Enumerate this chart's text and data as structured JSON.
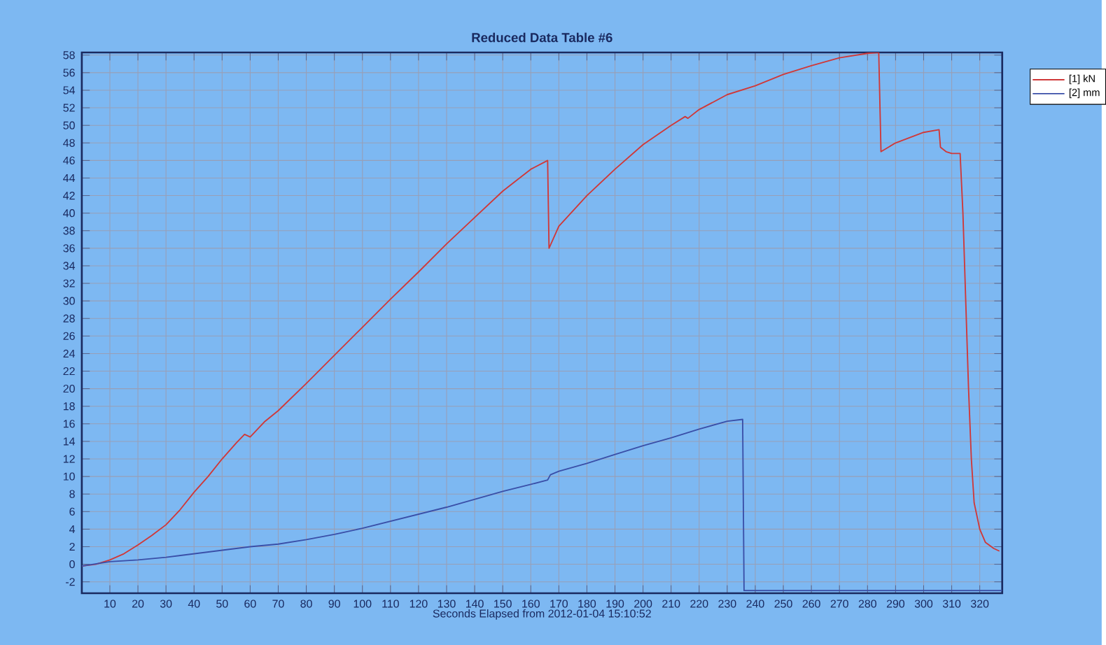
{
  "chart_data": {
    "type": "line",
    "title": "Reduced Data Table #6",
    "xlabel": "Seconds Elapsed from 2012-01-04 15:10:52",
    "xlim": [
      0,
      328
    ],
    "ylim": [
      -3.3,
      58.3
    ],
    "xticks": [
      10,
      20,
      30,
      40,
      50,
      60,
      70,
      80,
      90,
      100,
      110,
      120,
      130,
      140,
      150,
      160,
      170,
      180,
      190,
      200,
      210,
      220,
      230,
      240,
      250,
      260,
      270,
      280,
      290,
      300,
      310,
      320
    ],
    "yticks": [
      -2,
      0,
      2,
      4,
      6,
      8,
      10,
      12,
      14,
      16,
      18,
      20,
      22,
      24,
      26,
      28,
      30,
      32,
      34,
      36,
      38,
      40,
      42,
      44,
      46,
      48,
      50,
      52,
      54,
      56,
      58
    ],
    "grid": true,
    "legend": "top right",
    "marker": "none",
    "line_style": "solid",
    "series": [
      {
        "name": "[1] kN",
        "color": "#d03838",
        "x": [
          0,
          5,
          10,
          15,
          20,
          25,
          30,
          35,
          40,
          45,
          50,
          55,
          58,
          60,
          65,
          70,
          80,
          90,
          100,
          110,
          120,
          130,
          140,
          150,
          160,
          166,
          166.5,
          170,
          180,
          190,
          200,
          210,
          215,
          216,
          220,
          230,
          240,
          250,
          260,
          270,
          280,
          284,
          284.8,
          290,
          300,
          305.5,
          306,
          308,
          310,
          313,
          314,
          315,
          316,
          317,
          318,
          320,
          322,
          325,
          327
        ],
        "values": [
          -0.2,
          0,
          0.5,
          1.2,
          2.2,
          3.3,
          4.5,
          6.2,
          8.2,
          10,
          12,
          13.8,
          14.8,
          14.5,
          16.2,
          17.5,
          20.6,
          23.8,
          27,
          30.2,
          33.3,
          36.5,
          39.5,
          42.5,
          45,
          46,
          36,
          38.5,
          42,
          45,
          47.8,
          50,
          51,
          50.8,
          51.8,
          53.5,
          54.5,
          55.8,
          56.8,
          57.7,
          58.2,
          58.3,
          47,
          48,
          49.2,
          49.5,
          47.5,
          47,
          46.8,
          46.8,
          40,
          30,
          20,
          12,
          7,
          4,
          2.5,
          1.8,
          1.5
        ]
      },
      {
        "name": "[2] mm",
        "color": "#3a4fa8",
        "x": [
          0,
          10,
          20,
          30,
          40,
          50,
          60,
          70,
          80,
          90,
          100,
          110,
          120,
          130,
          140,
          150,
          160,
          166,
          167,
          170,
          180,
          190,
          200,
          210,
          220,
          230,
          235.5,
          236,
          328
        ],
        "values": [
          -0.2,
          0.3,
          0.5,
          0.8,
          1.2,
          1.6,
          2,
          2.3,
          2.8,
          3.4,
          4.1,
          4.9,
          5.7,
          6.5,
          7.4,
          8.3,
          9.1,
          9.6,
          10.2,
          10.6,
          11.5,
          12.5,
          13.5,
          14.4,
          15.4,
          16.3,
          16.5,
          -3,
          -3
        ]
      }
    ]
  }
}
